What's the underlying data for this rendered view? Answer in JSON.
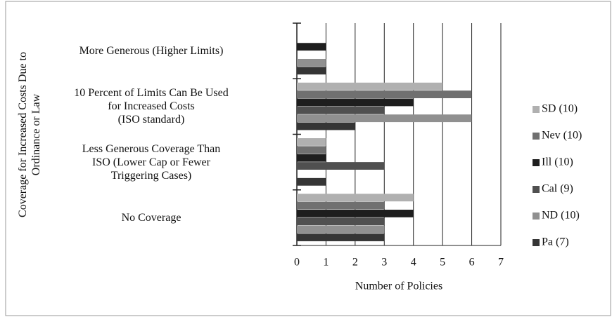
{
  "chart_data": {
    "type": "bar",
    "orientation": "horizontal",
    "y_axis_label": "Coverage for Increased Costs Due to\nOrdinance or Law",
    "x_axis_label": "Number of Policies",
    "categories": [
      "More Generous (Higher Limits)",
      "10 Percent of Limits Can Be Used\nfor Increased Costs\n(ISO standard)",
      "Less Generous Coverage Than\nISO (Lower Cap or Fewer\nTriggering Cases)",
      "No Coverage"
    ],
    "series": [
      {
        "name": "SD (10)",
        "color": "#b0b0b0",
        "values": [
          0,
          5,
          1,
          4
        ]
      },
      {
        "name": "Nev (10)",
        "color": "#707070",
        "values": [
          0,
          6,
          1,
          3
        ]
      },
      {
        "name": "Ill (10)",
        "color": "#1e1e1e",
        "values": [
          1,
          4,
          1,
          4
        ]
      },
      {
        "name": "Cal (9)",
        "color": "#505050",
        "values": [
          0,
          3,
          3,
          3
        ]
      },
      {
        "name": "ND (10)",
        "color": "#909090",
        "values": [
          1,
          6,
          0,
          3
        ]
      },
      {
        "name": "Pa (7)",
        "color": "#353535",
        "values": [
          1,
          2,
          1,
          3
        ]
      }
    ],
    "xlim": [
      0,
      7
    ],
    "xticks": [
      0,
      1,
      2,
      3,
      4,
      5,
      6,
      7
    ],
    "grid": true,
    "legend": "right"
  }
}
